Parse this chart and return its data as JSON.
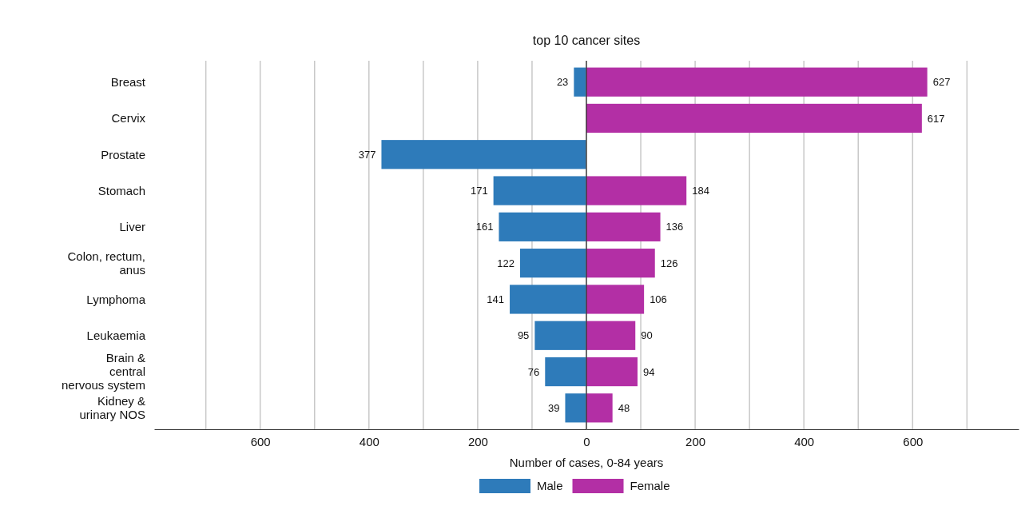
{
  "chart_data": [
    {
      "type": "bar",
      "orientation": "horizontal",
      "title": "top 10 cancer sites",
      "xlabel": "Number of cases, 0-84 years",
      "categories": [
        "Breast",
        "Cervix",
        "Prostate",
        "Stomach",
        "Liver",
        "Colon, rectum,\nanus",
        "Lymphoma",
        "Leukaemia",
        "Brain &\ncentral\nnervous system",
        "Kidney &\nurinary NOS"
      ],
      "series": [
        {
          "name": "Male",
          "color": "#2e7bba",
          "values": [
            23,
            null,
            377,
            171,
            161,
            122,
            141,
            95,
            76,
            39
          ]
        }
      ],
      "xlim": [
        795,
        0
      ],
      "xticks": [
        {
          "value": 700,
          "label": null
        },
        600,
        {
          "value": 500,
          "label": null
        },
        400,
        {
          "value": 300,
          "label": null
        },
        200,
        {
          "value": 100,
          "label": null
        }
      ],
      "data_labels": true,
      "grid": "x",
      "legend": "bottom"
    },
    {
      "type": "bar",
      "orientation": "horizontal",
      "categories": [
        null,
        null,
        null,
        null,
        null,
        null,
        null,
        null,
        null,
        null
      ],
      "series": [
        {
          "name": "Female",
          "color": "#b32fa5",
          "values": [
            627,
            617,
            null,
            184,
            136,
            126,
            106,
            90,
            94,
            48
          ]
        }
      ],
      "xlim": [
        0,
        795
      ],
      "xticks": [
        0,
        {
          "value": 100,
          "label": null
        },
        200,
        {
          "value": 300,
          "label": null
        },
        400,
        {
          "value": 500,
          "label": null
        },
        600,
        {
          "value": 700,
          "label": null
        }
      ],
      "data_labels": true,
      "grid": "x",
      "legend": "bottom",
      "tick_labels": "x"
    }
  ]
}
